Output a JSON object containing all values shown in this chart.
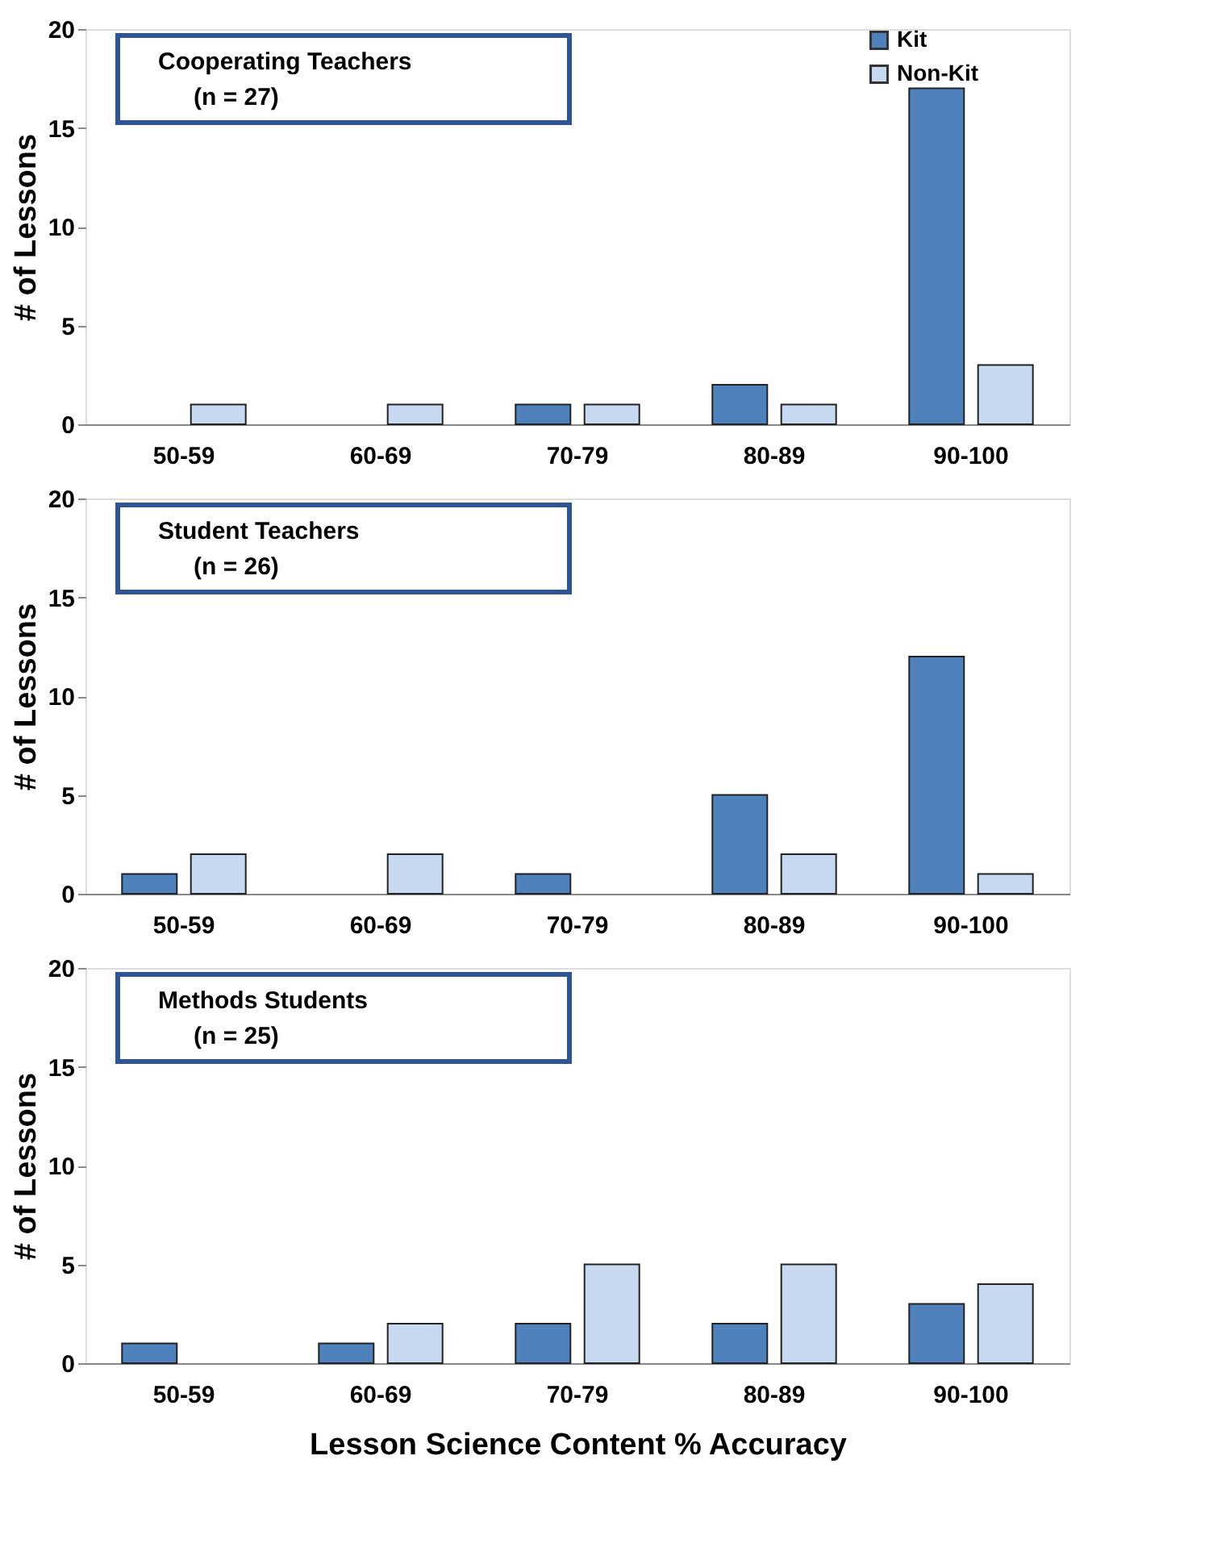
{
  "chart_data": [
    {
      "type": "bar",
      "annotations": [
        "Cooperating Teachers",
        "(n = 27)"
      ],
      "ylabel": "# of Lessons",
      "categories": [
        "50-59",
        "60-69",
        "70-79",
        "80-89",
        "90-100"
      ],
      "ylim": [
        0,
        20
      ],
      "yticks": [
        0,
        5,
        10,
        15,
        20
      ],
      "grid": false,
      "legend": "top right",
      "series": [
        {
          "name": "Kit",
          "color": "#4f81bd",
          "values": [
            0,
            0,
            1,
            2,
            17
          ]
        },
        {
          "name": "Non-Kit",
          "color": "#c6d9f1",
          "values": [
            1,
            1,
            1,
            1,
            3
          ]
        }
      ]
    },
    {
      "type": "bar",
      "annotations": [
        "Student Teachers",
        "(n = 26)"
      ],
      "ylabel": "# of Lessons",
      "categories": [
        "50-59",
        "60-69",
        "70-79",
        "80-89",
        "90-100"
      ],
      "ylim": [
        0,
        20
      ],
      "yticks": [
        0,
        5,
        10,
        15,
        20
      ],
      "grid": false,
      "legend": "top right",
      "series": [
        {
          "name": "Kit",
          "color": "#4f81bd",
          "values": [
            1,
            0,
            1,
            5,
            12
          ]
        },
        {
          "name": "Non-Kit",
          "color": "#c6d9f1",
          "values": [
            2,
            2,
            0,
            2,
            1
          ]
        }
      ]
    },
    {
      "type": "bar",
      "annotations": [
        "Methods Students",
        "(n = 25)"
      ],
      "ylabel": "# of Lessons",
      "xlabel": "Lesson Science Content % Accuracy",
      "categories": [
        "50-59",
        "60-69",
        "70-79",
        "80-89",
        "90-100"
      ],
      "ylim": [
        0,
        20
      ],
      "yticks": [
        0,
        5,
        10,
        15,
        20
      ],
      "grid": false,
      "legend": "top right",
      "series": [
        {
          "name": "Kit",
          "color": "#4f81bd",
          "values": [
            1,
            1,
            2,
            2,
            3
          ]
        },
        {
          "name": "Non-Kit",
          "color": "#c6d9f1",
          "values": [
            0,
            2,
            5,
            5,
            4
          ]
        }
      ]
    }
  ]
}
